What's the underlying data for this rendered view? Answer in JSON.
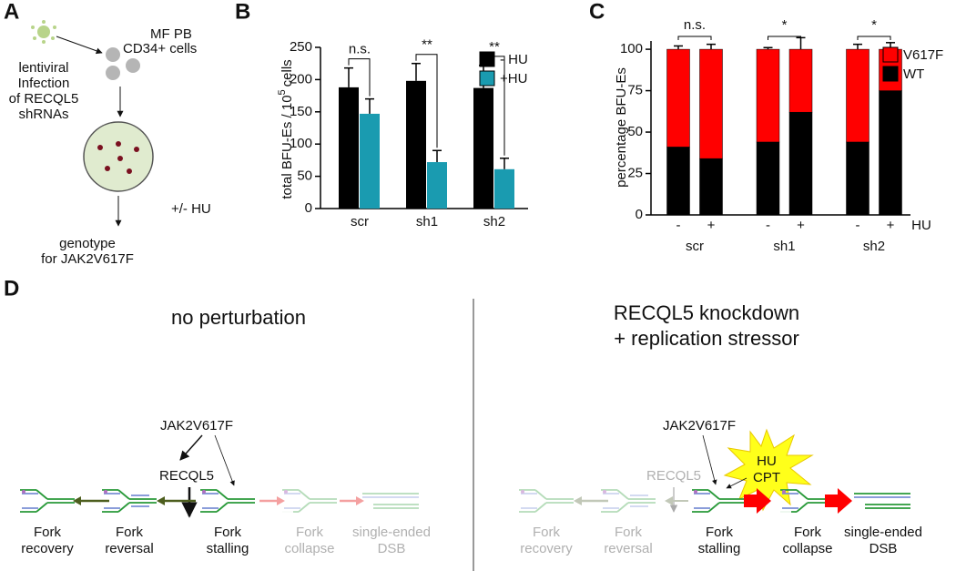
{
  "panel_a": {
    "label": "A",
    "cells": [
      "MF PB",
      "CD34+ cells"
    ],
    "infection": [
      "lentiviral",
      "Infection",
      "of RECQL5",
      "shRNAs"
    ],
    "treatment": "+/- HU",
    "readout": [
      "genotype",
      "for JAK2V617F"
    ]
  },
  "chart_data": [
    {
      "panel": "B",
      "type": "bar",
      "categories": [
        "scr",
        "sh1",
        "sh2"
      ],
      "ylabel": {
        "base": "total BFU-Es / 10",
        "sup": "5",
        "rest": "cells"
      },
      "ylim": [
        0,
        250
      ],
      "yticks": [
        0,
        50,
        100,
        150,
        200,
        250
      ],
      "series": [
        {
          "name": "- HU",
          "color": "#000000",
          "values": [
            188,
            198,
            187
          ],
          "errors": [
            30,
            27,
            35
          ]
        },
        {
          "name": "+HU",
          "color": "#1a9bb0",
          "values": [
            147,
            72,
            61
          ],
          "errors": [
            23,
            18,
            17
          ]
        }
      ],
      "annotations": [
        "n.s.",
        "**",
        "**"
      ],
      "legend": "top-right"
    },
    {
      "panel": "C",
      "type": "stacked_bar",
      "categories": [
        "-",
        "+",
        "-",
        "+",
        "-",
        "+"
      ],
      "groups": [
        "scr",
        "sh1",
        "sh2"
      ],
      "group_label": "HU",
      "ylabel": "percentage BFU-Es",
      "ylim": [
        0,
        105
      ],
      "yticks": [
        0,
        25,
        50,
        75,
        100
      ],
      "series": [
        {
          "name": "WT",
          "color": "#000000",
          "values": [
            41,
            34,
            44,
            62,
            44,
            75
          ],
          "errors": [
            3,
            2,
            3,
            1,
            4,
            7
          ]
        },
        {
          "name": "V617F",
          "color": "#ff0000",
          "values": [
            59,
            66,
            56,
            38,
            56,
            25
          ],
          "errors": [
            2,
            3,
            1,
            7,
            3,
            4
          ]
        }
      ],
      "annotations": [
        "n.s.",
        "*",
        "*"
      ],
      "legend": "top-right"
    }
  ],
  "panel_d": {
    "label": "D",
    "left": {
      "title": "no perturbation",
      "regulators": [
        "JAK2V617F",
        "RECQL5"
      ],
      "steps": [
        [
          "Fork",
          "recovery"
        ],
        [
          "Fork",
          "reversal"
        ],
        [
          "Fork",
          "stalling"
        ],
        [
          "Fork",
          "collapse"
        ],
        [
          "single-ended",
          "DSB"
        ]
      ]
    },
    "right": {
      "title": [
        "RECQL5 knockdown",
        "+ replication stressor"
      ],
      "regulators": [
        "JAK2V617F",
        "RECQL5"
      ],
      "stressors": [
        "HU",
        "CPT"
      ],
      "steps": [
        [
          "Fork",
          "recovery"
        ],
        [
          "Fork",
          "reversal"
        ],
        [
          "Fork",
          "stalling"
        ],
        [
          "Fork",
          "collapse"
        ],
        [
          "single-ended",
          "DSB"
        ]
      ]
    }
  }
}
